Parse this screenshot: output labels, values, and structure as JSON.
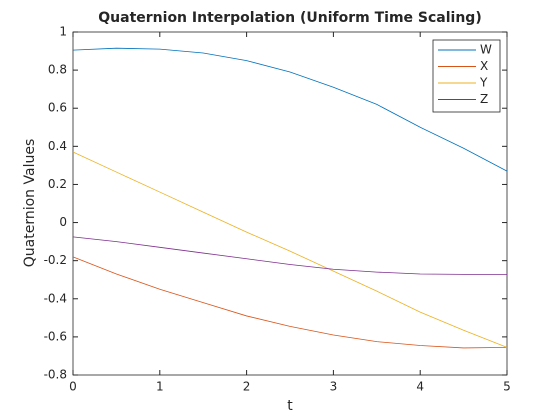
{
  "chart_data": {
    "type": "line",
    "title": "Quaternion Interpolation (Uniform Time Scaling)",
    "xlabel": "t",
    "ylabel": "Quaternion Values",
    "x": [
      0,
      0.5,
      1,
      1.5,
      2,
      2.5,
      3,
      3.5,
      4,
      4.5,
      5
    ],
    "series": [
      {
        "name": "W",
        "color": "#0072bd",
        "values": [
          0.905,
          0.915,
          0.91,
          0.89,
          0.85,
          0.79,
          0.71,
          0.62,
          0.5,
          0.39,
          0.27
        ]
      },
      {
        "name": "X",
        "color": "#d95319",
        "values": [
          -0.18,
          -0.27,
          -0.35,
          -0.42,
          -0.49,
          -0.545,
          -0.59,
          -0.625,
          -0.645,
          -0.658,
          -0.655
        ]
      },
      {
        "name": "Y",
        "color": "#edb120",
        "values": [
          0.37,
          0.265,
          0.16,
          0.055,
          -0.05,
          -0.15,
          -0.255,
          -0.36,
          -0.47,
          -0.565,
          -0.655
        ]
      },
      {
        "name": "Z",
        "color": "#7e2f8e",
        "values": [
          -0.075,
          -0.1,
          -0.13,
          -0.16,
          -0.19,
          -0.22,
          -0.245,
          -0.26,
          -0.27,
          -0.272,
          -0.272
        ]
      }
    ],
    "xlim": [
      0,
      5
    ],
    "xticks": [
      0,
      1,
      2,
      3,
      4,
      5
    ],
    "ylim": [
      -0.8,
      1
    ],
    "yticks": [
      -0.8,
      -0.6,
      -0.4,
      -0.2,
      0,
      0.2,
      0.4,
      0.6,
      0.8,
      1
    ],
    "grid": false,
    "legend": "northeast"
  }
}
